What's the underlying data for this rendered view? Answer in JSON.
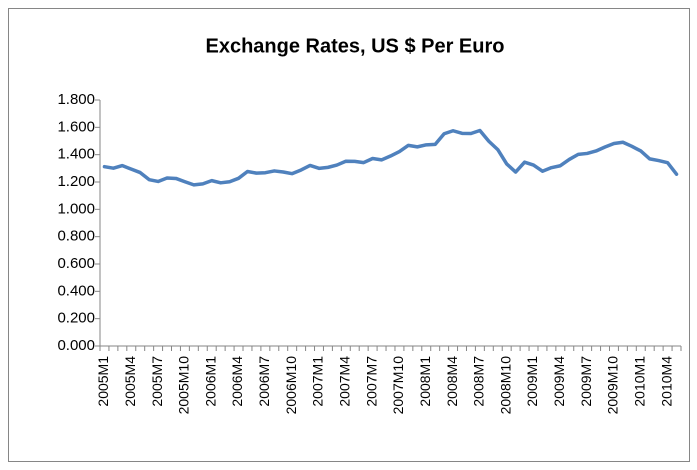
{
  "chart_data": {
    "type": "line",
    "title": "Exchange Rates, US $  Per Euro",
    "categories": [
      "2005M1",
      null,
      null,
      "2005M4",
      null,
      null,
      "2005M7",
      null,
      null,
      "2005M10",
      null,
      null,
      "2006M1",
      null,
      null,
      "2006M4",
      null,
      null,
      "2006M7",
      null,
      null,
      "2006M10",
      null,
      null,
      "2007M1",
      null,
      null,
      "2007M4",
      null,
      null,
      "2007M7",
      null,
      null,
      "2007M10",
      null,
      null,
      "2008M1",
      null,
      null,
      "2008M4",
      null,
      null,
      "2008M7",
      null,
      null,
      "2008M10",
      null,
      null,
      "2009M1",
      null,
      null,
      "2009M4",
      null,
      null,
      "2009M7",
      null,
      null,
      "2009M10",
      null,
      null,
      "2010M1",
      null,
      null,
      "2010M4",
      null
    ],
    "series": [
      {
        "name": "US $ Per Euro",
        "color": "#4f81bd",
        "values": [
          1.312,
          1.301,
          1.32,
          1.294,
          1.269,
          1.217,
          1.204,
          1.229,
          1.226,
          1.202,
          1.179,
          1.186,
          1.21,
          1.194,
          1.202,
          1.227,
          1.277,
          1.265,
          1.268,
          1.281,
          1.273,
          1.261,
          1.288,
          1.321,
          1.3,
          1.307,
          1.324,
          1.352,
          1.351,
          1.342,
          1.372,
          1.362,
          1.39,
          1.423,
          1.468,
          1.457,
          1.472,
          1.475,
          1.553,
          1.575,
          1.556,
          1.555,
          1.577,
          1.498,
          1.437,
          1.332,
          1.273,
          1.345,
          1.324,
          1.279,
          1.305,
          1.319,
          1.365,
          1.402,
          1.409,
          1.427,
          1.456,
          1.482,
          1.491,
          1.461,
          1.427,
          1.369,
          1.357,
          1.341,
          1.257
        ]
      }
    ],
    "ylim": [
      0,
      1.8
    ],
    "yticks": [
      {
        "value": 0,
        "label": "0.000"
      },
      {
        "value": 0.2,
        "label": "0.200"
      },
      {
        "value": 0.4,
        "label": "0.400"
      },
      {
        "value": 0.6,
        "label": "0.600"
      },
      {
        "value": 0.8,
        "label": "0.800"
      },
      {
        "value": 1,
        "label": "1.000"
      },
      {
        "value": 1.2,
        "label": "1.200"
      },
      {
        "value": 1.4,
        "label": "1.400"
      },
      {
        "value": 1.6,
        "label": "1.600"
      },
      {
        "value": 1.8,
        "label": "1.800"
      }
    ],
    "grid": false
  }
}
